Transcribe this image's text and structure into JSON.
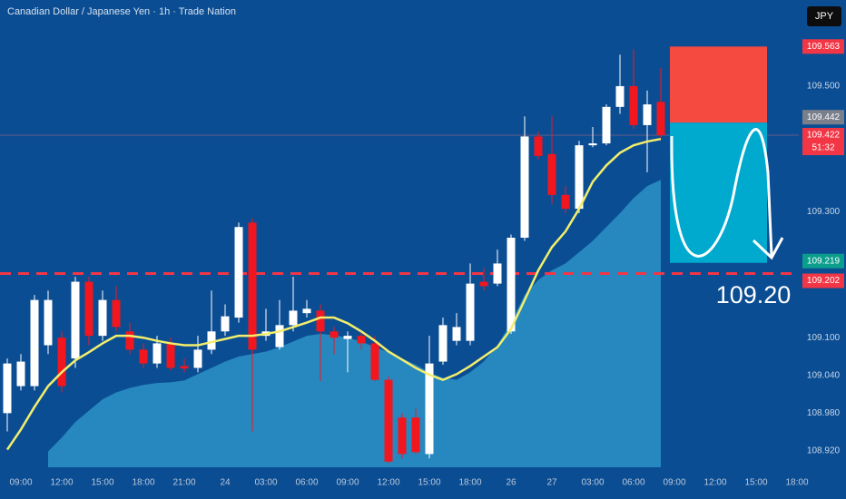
{
  "chart_data": {
    "type": "candlestick",
    "title": "Canadian Dollar / Japanese Yen · 1h · Trade Nation",
    "currency": "JPY",
    "categories": [
      null,
      "09:00",
      null,
      null,
      "12:00",
      null,
      null,
      "15:00",
      null,
      null,
      "18:00",
      null,
      null,
      "21:00",
      null,
      null,
      "24",
      null,
      null,
      "03:00",
      null,
      null,
      "06:00",
      null,
      null,
      "09:00",
      null,
      null,
      "12:00",
      null,
      null,
      "15:00",
      null,
      null,
      "18:00",
      null,
      null,
      "26",
      null,
      null,
      "27",
      null,
      null,
      "03:00",
      null,
      null,
      "06:00",
      null,
      null
    ],
    "xticks_future": [
      "09:00",
      "12:00",
      "15:00",
      "18:00"
    ],
    "open": [
      108.98,
      109.023,
      109.023,
      109.088,
      109.1,
      109.067,
      109.189,
      109.103,
      109.16,
      109.11,
      109.081,
      109.059,
      109.091,
      109.055,
      109.052,
      109.081,
      109.11,
      109.132,
      109.283,
      109.103,
      109.085,
      109.12,
      109.139,
      109.143,
      109.11,
      109.098,
      109.103,
      109.091,
      109.033,
      108.973,
      108.973,
      108.915,
      109.062,
      109.095,
      109.095,
      109.189,
      109.186,
      109.11,
      109.259,
      109.42,
      109.392,
      109.327,
      109.305,
      109.406,
      109.409,
      109.467,
      109.5,
      109.438,
      109.475
    ],
    "high": [
      109.067,
      109.074,
      109.168,
      109.175,
      109.11,
      109.197,
      109.197,
      109.175,
      109.182,
      109.124,
      109.091,
      109.103,
      109.1,
      109.067,
      109.103,
      109.175,
      109.153,
      109.283,
      109.29,
      109.146,
      109.16,
      109.197,
      109.16,
      109.153,
      109.117,
      109.11,
      109.11,
      109.103,
      109.038,
      108.98,
      108.987,
      109.103,
      109.132,
      109.139,
      109.218,
      109.211,
      109.24,
      109.264,
      109.452,
      109.428,
      109.452,
      109.341,
      109.413,
      109.435,
      109.471,
      109.55,
      109.558,
      109.493,
      109.529
    ],
    "low": [
      108.951,
      109.016,
      109.016,
      109.074,
      109.013,
      109.052,
      109.088,
      109.095,
      109.11,
      109.074,
      109.052,
      109.052,
      109.048,
      109.045,
      109.045,
      109.074,
      109.103,
      109.124,
      108.951,
      109.095,
      109.081,
      109.11,
      109.132,
      109.031,
      109.074,
      109.045,
      109.081,
      109.031,
      108.901,
      108.908,
      108.915,
      108.908,
      109.057,
      109.088,
      109.088,
      109.175,
      109.182,
      109.106,
      109.254,
      109.384,
      109.312,
      109.298,
      109.298,
      109.403,
      109.406,
      109.456,
      109.432,
      109.363,
      109.418
    ],
    "close": [
      109.059,
      109.062,
      109.16,
      109.16,
      109.023,
      109.189,
      109.103,
      109.16,
      109.117,
      109.081,
      109.059,
      109.091,
      109.052,
      109.051,
      109.081,
      109.11,
      109.134,
      109.276,
      109.081,
      109.11,
      109.12,
      109.143,
      109.146,
      109.11,
      109.1,
      109.103,
      109.091,
      109.033,
      108.903,
      108.915,
      108.918,
      109.059,
      109.12,
      109.117,
      109.186,
      109.182,
      109.218,
      109.259,
      109.42,
      109.389,
      109.327,
      109.305,
      109.406,
      109.409,
      109.467,
      109.5,
      109.438,
      109.471,
      109.422
    ],
    "up_color": "#ffffff",
    "down_color": "#f2161f",
    "ma_fast": {
      "color": "#f3ee6b",
      "values": [
        108.922,
        108.954,
        108.99,
        109.023,
        109.045,
        109.064,
        109.077,
        109.091,
        109.103,
        109.103,
        109.1,
        109.095,
        109.091,
        109.088,
        109.088,
        109.093,
        109.098,
        109.103,
        109.103,
        109.106,
        109.11,
        109.117,
        109.124,
        109.132,
        109.132,
        109.123,
        109.11,
        109.095,
        109.078,
        109.065,
        109.052,
        109.041,
        109.033,
        109.042,
        109.055,
        109.07,
        109.085,
        109.114,
        109.16,
        109.207,
        109.244,
        109.269,
        109.305,
        109.348,
        109.374,
        109.394,
        109.406,
        109.412,
        109.416
      ]
    },
    "ma_slow": {
      "color": "#2b93c6",
      "values": [
        null,
        null,
        null,
        108.919,
        108.941,
        108.966,
        108.984,
        109.002,
        109.013,
        109.02,
        109.025,
        109.028,
        109.029,
        109.032,
        109.042,
        109.052,
        109.062,
        109.07,
        109.074,
        109.078,
        109.085,
        109.094,
        109.103,
        109.106,
        109.104,
        109.1,
        109.094,
        109.085,
        109.077,
        109.067,
        109.057,
        109.045,
        109.036,
        109.033,
        109.045,
        109.062,
        109.088,
        109.124,
        109.168,
        109.192,
        109.207,
        109.218,
        109.236,
        109.254,
        109.276,
        109.298,
        109.322,
        109.341,
        109.351
      ]
    },
    "ylim": [
      108.894,
      109.637
    ],
    "yticks": [
      {
        "value": 108.92,
        "label": "108.920"
      },
      {
        "value": 108.98,
        "label": "108.980"
      },
      {
        "value": 109.04,
        "label": "109.040"
      },
      {
        "value": 109.1,
        "label": "109.100"
      },
      {
        "value": 109.3,
        "label": "109.300"
      },
      {
        "value": 109.5,
        "label": "109.500"
      }
    ],
    "position": {
      "stop": {
        "value": 109.563,
        "label": "109.563",
        "color": "#f44a3f"
      },
      "entry": {
        "value": 109.442,
        "label": "109.442",
        "color": "#7a7f8c"
      },
      "target": {
        "value": 109.219,
        "label": "109.219",
        "color": "#00a9ce"
      }
    },
    "last_price_label": "109.422",
    "countdown": "51:32",
    "level": {
      "value": 109.202,
      "axis_label": "109.202",
      "label": "109.20",
      "color": "#f23645"
    }
  }
}
